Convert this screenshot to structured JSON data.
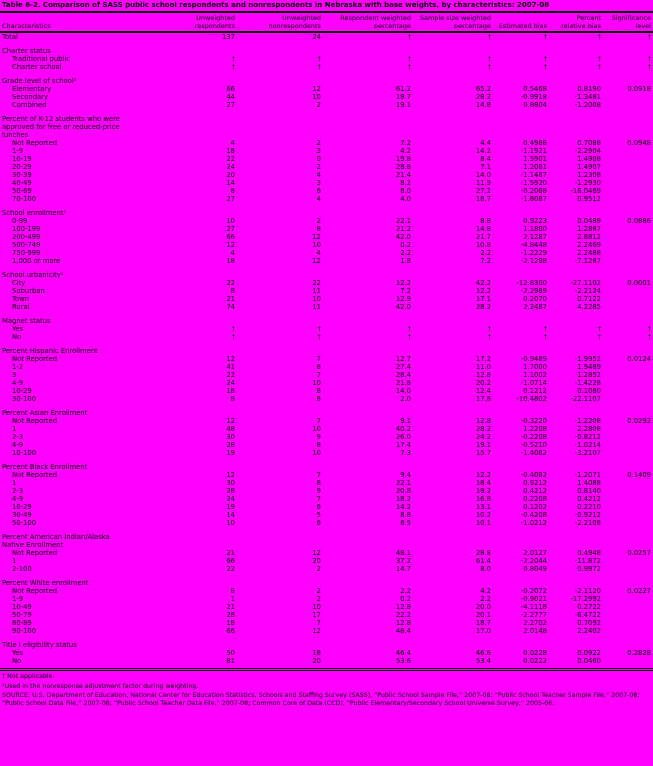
{
  "colors": {
    "background": "#FF00FF",
    "text": "#000000",
    "rule": "#000000"
  },
  "title": "Table 6-2. Comparison of SASS public school respondents and nonrespondents in Nebraska with base weights, by characteristics: 2007-08",
  "table": {
    "stub_header": "Characteristics",
    "columns": [
      "Unweighted respondents",
      "Unweighted nonrespondents",
      "Respondent weighted percentage",
      "Sample size weighted percentage",
      "Estimated bias",
      "Percent relative bias",
      "Significance level"
    ],
    "rows": [
      {
        "type": "data",
        "label": "Total",
        "indent": 0,
        "values": [
          "137",
          "24",
          "†",
          "†",
          "†",
          "†",
          "†"
        ]
      },
      {
        "type": "spacer"
      },
      {
        "type": "section",
        "label": "Charter status"
      },
      {
        "type": "data",
        "label": "Traditional public",
        "indent": 1,
        "values": [
          "†",
          "†",
          "†",
          "†",
          "†",
          "†",
          "†"
        ]
      },
      {
        "type": "data",
        "label": "Charter school",
        "indent": 1,
        "values": [
          "†",
          "†",
          "†",
          "†",
          "†",
          "†",
          "†"
        ]
      },
      {
        "type": "spacer"
      },
      {
        "type": "section",
        "label": "Grade level of school¹"
      },
      {
        "type": "data",
        "label": "Elementary",
        "indent": 1,
        "values": [
          "66",
          "12",
          "61.2",
          "65.2",
          "0.5468",
          "0.8190",
          "0.0918"
        ]
      },
      {
        "type": "data",
        "label": "Secondary",
        "indent": 1,
        "values": [
          "44",
          "10",
          "19.7",
          "28.2",
          "-0.9918",
          "-1.3481",
          ""
        ]
      },
      {
        "type": "data",
        "label": "Combined",
        "indent": 1,
        "values": [
          "27",
          "2",
          "19.1",
          "14.8",
          "0.8804",
          "-1.2008",
          ""
        ]
      },
      {
        "type": "spacer"
      },
      {
        "type": "section",
        "label": "Percent of K-12 students who were approved for free or reduced-price lunches"
      },
      {
        "type": "data",
        "label": "Not Reported",
        "indent": 1,
        "values": [
          "4",
          "2",
          "7.2",
          "4.4",
          "0.4988",
          "0.7088",
          "0.0948"
        ]
      },
      {
        "type": "data",
        "label": "1-9",
        "indent": 1,
        "values": [
          "18",
          "3",
          "4.2",
          "14.2",
          "-1.1921",
          "-2.2904",
          ""
        ]
      },
      {
        "type": "data",
        "label": "10-19",
        "indent": 1,
        "values": [
          "22",
          "0",
          "19.8",
          "8.4",
          "1.5901",
          "1.4908",
          ""
        ]
      },
      {
        "type": "data",
        "label": "20-29",
        "indent": 1,
        "values": [
          "24",
          "2",
          "28.8",
          "7.1",
          "1.2081",
          "1.4907",
          ""
        ]
      },
      {
        "type": "data",
        "label": "30-39",
        "indent": 1,
        "values": [
          "20",
          "4",
          "21.4",
          "14.0",
          "-1.1487",
          "1.2308",
          ""
        ]
      },
      {
        "type": "data",
        "label": "40-49",
        "indent": 1,
        "values": [
          "14",
          "3",
          "8.2",
          "11.9",
          "-1.5920",
          "-1.2930",
          ""
        ]
      },
      {
        "type": "data",
        "label": "50-69",
        "indent": 1,
        "values": [
          "8",
          "6",
          "8.0",
          "27.2",
          "-0.2088",
          "-18.0469",
          ""
        ]
      },
      {
        "type": "data",
        "label": "70-100",
        "indent": 1,
        "values": [
          "27",
          "4",
          "4.0",
          "18.7",
          "-1.8087",
          "0.9512",
          ""
        ]
      },
      {
        "type": "spacer"
      },
      {
        "type": "section",
        "label": "School enrollment¹"
      },
      {
        "type": "data",
        "label": "0-99",
        "indent": 1,
        "values": [
          "10",
          "2",
          "22.1",
          "8.8",
          "0.9223",
          "0.0489",
          "0.0886"
        ]
      },
      {
        "type": "data",
        "label": "100-199",
        "indent": 1,
        "values": [
          "27",
          "8",
          "21.2",
          "14.8",
          "1.1800",
          "1.2887",
          ""
        ]
      },
      {
        "type": "data",
        "label": "200-499",
        "indent": 1,
        "values": [
          "66",
          "12",
          "42.0",
          "21.7",
          "2.1287",
          "2.8812",
          ""
        ]
      },
      {
        "type": "data",
        "label": "500-749",
        "indent": 1,
        "values": [
          "12",
          "10",
          "0.2",
          "10.8",
          "-4.8448",
          "2.2469",
          ""
        ]
      },
      {
        "type": "data",
        "label": "750-999",
        "indent": 1,
        "values": [
          "4",
          "4",
          "2.2",
          "2.2",
          "-1.2229",
          "2.2488",
          ""
        ]
      },
      {
        "type": "data",
        "label": "1,000 or more",
        "indent": 1,
        "values": [
          "18",
          "12",
          "1.8",
          "7.2",
          "-2.1298",
          "-7.1287",
          ""
        ]
      },
      {
        "type": "spacer"
      },
      {
        "type": "section",
        "label": "School urbanicity¹"
      },
      {
        "type": "data",
        "label": "City",
        "indent": 1,
        "values": [
          "22",
          "22",
          "12.2",
          "42.2",
          "-12.8300",
          "-27.1102",
          "0.0001"
        ]
      },
      {
        "type": "data",
        "label": "Suburban",
        "indent": 1,
        "values": [
          "8",
          "11",
          "7.2",
          "12.2",
          "-2.2989",
          "-2.2124",
          ""
        ]
      },
      {
        "type": "data",
        "label": "Town",
        "indent": 1,
        "values": [
          "21",
          "10",
          "12.9",
          "17.1",
          "0.2070",
          "0.7122",
          ""
        ]
      },
      {
        "type": "data",
        "label": "Rural",
        "indent": 1,
        "values": [
          "74",
          "11",
          "42.0",
          "28.2",
          "2.2487",
          "4.2285",
          ""
        ]
      },
      {
        "type": "spacer"
      },
      {
        "type": "section",
        "label": "Magnet status"
      },
      {
        "type": "data",
        "label": "Yes",
        "indent": 1,
        "values": [
          "†",
          "†",
          "†",
          "†",
          "†",
          "†",
          "†"
        ]
      },
      {
        "type": "data",
        "label": "No",
        "indent": 1,
        "values": [
          "†",
          "†",
          "†",
          "†",
          "†",
          "†",
          "†"
        ]
      },
      {
        "type": "spacer"
      },
      {
        "type": "section",
        "label": "Percent Hispanic Enrollment"
      },
      {
        "type": "data",
        "label": "Not Reported",
        "indent": 1,
        "values": [
          "12",
          "7",
          "12.7",
          "17.2",
          "-0.9489",
          "-1.9952",
          "0.0124"
        ]
      },
      {
        "type": "data",
        "label": "1-2",
        "indent": 1,
        "values": [
          "41",
          "8",
          "27.4",
          "11.0",
          "1.7000",
          "1.9489",
          ""
        ]
      },
      {
        "type": "data",
        "label": "3",
        "indent": 1,
        "values": [
          "22",
          "7",
          "28.4",
          "12.8",
          "1.1002",
          "1.2852",
          ""
        ]
      },
      {
        "type": "data",
        "label": "4-9",
        "indent": 1,
        "values": [
          "24",
          "10",
          "21.8",
          "20.2",
          "-1.0714",
          "-1.4228",
          ""
        ]
      },
      {
        "type": "data",
        "label": "10-29",
        "indent": 1,
        "values": [
          "18",
          "8",
          "14.0",
          "12.4",
          "0.1212",
          "0.1080",
          ""
        ]
      },
      {
        "type": "data",
        "label": "30-100",
        "indent": 1,
        "values": [
          "8",
          "8",
          "2.0",
          "17.8",
          "-10.4802",
          "-22.1107",
          ""
        ]
      },
      {
        "type": "spacer"
      },
      {
        "type": "section",
        "label": "Percent Asian Enrollment"
      },
      {
        "type": "data",
        "label": "Not Reported",
        "indent": 1,
        "values": [
          "12",
          "7",
          "9.1",
          "12.8",
          "-0.3220",
          "-1.2208",
          "0.0292"
        ]
      },
      {
        "type": "data",
        "label": "1",
        "indent": 1,
        "values": [
          "48",
          "10",
          "40.2",
          "28.2",
          "1.2208",
          "2.2808",
          ""
        ]
      },
      {
        "type": "data",
        "label": "2-3",
        "indent": 1,
        "values": [
          "30",
          "9",
          "26.0",
          "24.2",
          "-0.2208",
          "-0.8212",
          ""
        ]
      },
      {
        "type": "data",
        "label": "4-9",
        "indent": 1,
        "values": [
          "28",
          "8",
          "17.4",
          "19.1",
          "-0.5210",
          "-1.0214",
          ""
        ]
      },
      {
        "type": "data",
        "label": "10-100",
        "indent": 1,
        "values": [
          "19",
          "10",
          "7.3",
          "15.7",
          "-1.4082",
          "-3.2107",
          ""
        ]
      },
      {
        "type": "spacer"
      },
      {
        "type": "section",
        "label": "Percent Black Enrollment"
      },
      {
        "type": "data",
        "label": "Not Reported",
        "indent": 1,
        "values": [
          "12",
          "7",
          "9.4",
          "12.2",
          "-0.4082",
          "-1.2071",
          "0.1409"
        ]
      },
      {
        "type": "data",
        "label": "1",
        "indent": 1,
        "values": [
          "30",
          "8",
          "22.1",
          "18.4",
          "0.9212",
          "1.4088",
          ""
        ]
      },
      {
        "type": "data",
        "label": "2-3",
        "indent": 1,
        "values": [
          "28",
          "9",
          "20.8",
          "19.2",
          "0.4212",
          "0.8140",
          ""
        ]
      },
      {
        "type": "data",
        "label": "4-9",
        "indent": 1,
        "values": [
          "24",
          "7",
          "18.2",
          "16.8",
          "0.2208",
          "0.4212",
          ""
        ]
      },
      {
        "type": "data",
        "label": "10-29",
        "indent": 1,
        "values": [
          "19",
          "6",
          "14.2",
          "13.1",
          "0.1202",
          "0.2210",
          ""
        ]
      },
      {
        "type": "data",
        "label": "30-49",
        "indent": 1,
        "values": [
          "14",
          "5",
          "8.8",
          "10.2",
          "-0.4208",
          "-0.9212",
          ""
        ]
      },
      {
        "type": "data",
        "label": "50-100",
        "indent": 1,
        "values": [
          "10",
          "6",
          "6.5",
          "10.1",
          "-1.0212",
          "-2.2108",
          ""
        ]
      },
      {
        "type": "spacer"
      },
      {
        "type": "section",
        "label": "Percent American Indian/Alaska Native Enrollment"
      },
      {
        "type": "data",
        "label": "Not Reported",
        "indent": 1,
        "values": [
          "21",
          "12",
          "48.1",
          "28.8",
          "2.0127",
          "0.4948",
          "0.0257"
        ]
      },
      {
        "type": "data",
        "label": "1",
        "indent": 1,
        "values": [
          "66",
          "20",
          "37.2",
          "61.4",
          "-2.2044",
          "-11.872",
          ""
        ]
      },
      {
        "type": "data",
        "label": "2-100",
        "indent": 1,
        "values": [
          "22",
          "2",
          "14.7",
          "8.0",
          "0.8049",
          "0.9972",
          ""
        ]
      },
      {
        "type": "spacer"
      },
      {
        "type": "section",
        "label": "Percent White enrollment"
      },
      {
        "type": "data",
        "label": "Not Reported",
        "indent": 1,
        "values": [
          "8",
          "2",
          "2.2",
          "4.2",
          "-0.2072",
          "-2.1120",
          "0.0227"
        ]
      },
      {
        "type": "data",
        "label": "1-9",
        "indent": 1,
        "values": [
          "1",
          "2",
          "0.2",
          "2.2",
          "-0.9021",
          "-17.2992",
          ""
        ]
      },
      {
        "type": "data",
        "label": "10-49",
        "indent": 1,
        "values": [
          "21",
          "10",
          "12.8",
          "20.0",
          "-4.1118",
          "0.2722",
          ""
        ]
      },
      {
        "type": "data",
        "label": "50-79",
        "indent": 1,
        "values": [
          "28",
          "17",
          "22.2",
          "20.1",
          "-2.2777",
          "-8.4722",
          ""
        ]
      },
      {
        "type": "data",
        "label": "80-89",
        "indent": 1,
        "values": [
          "18",
          "7",
          "12.8",
          "18.7",
          "2.2702",
          "0.7092",
          ""
        ]
      },
      {
        "type": "data",
        "label": "90-100",
        "indent": 1,
        "values": [
          "66",
          "12",
          "48.4",
          "17.0",
          "2.0148",
          "2.2402",
          ""
        ]
      },
      {
        "type": "spacer"
      },
      {
        "type": "section",
        "label": "Title I eligibility status"
      },
      {
        "type": "data",
        "label": "Yes",
        "indent": 1,
        "values": [
          "50",
          "18",
          "46.4",
          "46.6",
          "0.0228",
          "0.0922",
          "0.2828"
        ]
      },
      {
        "type": "data",
        "label": "No",
        "indent": 1,
        "values": [
          "81",
          "20",
          "53.6",
          "53.4",
          "0.0222",
          "0.0460",
          ""
        ]
      }
    ]
  },
  "footnotes": {
    "not_applicable": "† Not applicable.",
    "footnote1": "¹Used in the nonresponse adjustment factor during weighting.",
    "source": "SOURCE: U.S. Department of Education, National Center for Education Statistics, Schools and Staffing Survey (SASS), “Public School Sample File,” 2007-08; “Public School Teacher Sample File,” 2007-08; “Public School Data File,” 2007-08; “Public School Teacher Data File,” 2007-08; Common Core of Data (CCD), “Public Elementary/Secondary School Universe Survey,” 2005-06."
  }
}
